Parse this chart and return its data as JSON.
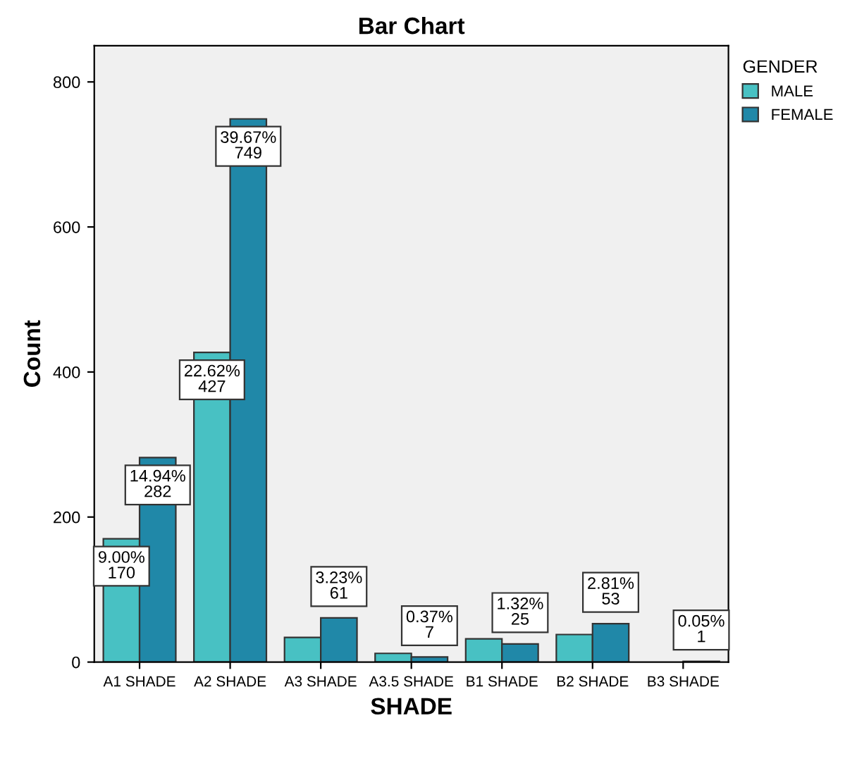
{
  "chart_data": {
    "type": "bar",
    "title": "Bar Chart",
    "xlabel": "SHADE",
    "ylabel": "Count",
    "legend_title": "GENDER",
    "categories": [
      "A1 SHADE",
      "A2 SHADE",
      "A3 SHADE",
      "A3.5 SHADE",
      "B1 SHADE",
      "B2 SHADE",
      "B3 SHADE"
    ],
    "series": [
      {
        "name": "MALE",
        "color": "#48c1c3",
        "values": [
          170,
          427,
          34,
          12,
          32,
          38,
          null
        ],
        "value_labels": [
          "9.00%\n170",
          "22.62%\n427",
          null,
          null,
          null,
          null,
          null
        ]
      },
      {
        "name": "FEMALE",
        "color": "#2088a8",
        "values": [
          282,
          749,
          61,
          7,
          25,
          53,
          1
        ],
        "value_labels": [
          "14.94%\n282",
          "39.67%\n749",
          "3.23%\n61",
          "0.37%\n7",
          "1.32%\n25",
          "2.81%\n53",
          "0.05%\n1"
        ]
      }
    ],
    "ylim": [
      0,
      850
    ],
    "yticks": [
      0,
      200,
      400,
      600,
      800
    ],
    "grid": false,
    "legend": "top right"
  }
}
